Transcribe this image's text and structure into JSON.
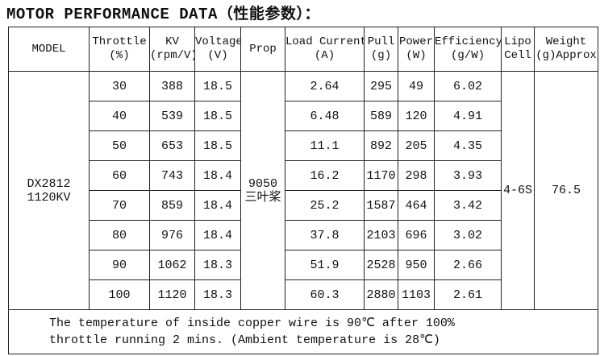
{
  "title": "MOTOR PERFORMANCE DATA（性能参数）：",
  "table": {
    "headers": [
      [
        "MODEL"
      ],
      [
        "Throttle",
        "(%)"
      ],
      [
        "KV",
        "(rpm/V)"
      ],
      [
        "Voltage",
        "(V)"
      ],
      [
        "Prop"
      ],
      [
        "Load Current",
        "(A)"
      ],
      [
        "Pull",
        "(g)"
      ],
      [
        "Power",
        "(W)"
      ],
      [
        "Efficiency",
        "(g/W)"
      ],
      [
        "Lipo",
        "Cell"
      ],
      [
        "Weight",
        "(g)Approx"
      ]
    ],
    "model": [
      "DX2812",
      "1120KV"
    ],
    "prop": [
      "9050",
      "三叶桨"
    ],
    "lipo": "4-6S",
    "weight": 76.5,
    "rows": [
      [
        30,
        388,
        18.5,
        2.64,
        295,
        49,
        6.02
      ],
      [
        40,
        539,
        18.5,
        6.48,
        589,
        120,
        4.91
      ],
      [
        50,
        653,
        18.5,
        11.1,
        892,
        205,
        4.35
      ],
      [
        60,
        743,
        18.4,
        16.2,
        1170,
        298,
        3.93
      ],
      [
        70,
        859,
        18.4,
        25.2,
        1587,
        464,
        3.42
      ],
      [
        80,
        976,
        18.4,
        37.8,
        2103,
        696,
        3.02
      ],
      [
        90,
        1062,
        18.3,
        51.9,
        2528,
        950,
        2.66
      ],
      [
        100,
        1120,
        18.3,
        60.3,
        2880,
        1103,
        2.61
      ]
    ],
    "footnote": [
      "The temperature of inside copper wire is 90℃ after 100%",
      "throttle running 2 mins. (Ambient temperature is 28℃)"
    ]
  }
}
